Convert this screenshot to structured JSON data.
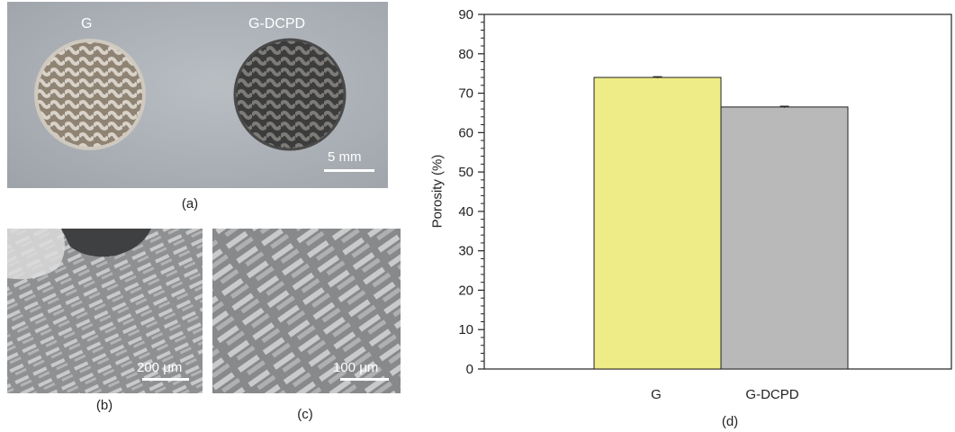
{
  "panel_a": {
    "label_left": "G",
    "label_right": "G-DCPD",
    "scale_label": "5 mm",
    "caption": "(a)"
  },
  "panel_b": {
    "scale_label": "200 μm",
    "caption": "(b)"
  },
  "panel_c": {
    "scale_label": "100 μm",
    "caption": "(c)"
  },
  "panel_d": {
    "caption": "(d)"
  },
  "colors": {
    "bar_g": "#eeec86",
    "bar_gdcpd": "#b9b9b9"
  },
  "chart_data": {
    "type": "bar",
    "categories": [
      "G",
      "G-DCPD"
    ],
    "values": [
      74,
      66.5
    ],
    "errors": [
      0.2,
      0.2
    ],
    "ylabel": "Porosity (%)",
    "xlabel": "",
    "ylim": [
      0,
      90
    ],
    "yticks": [
      0,
      10,
      20,
      30,
      40,
      50,
      60,
      70,
      80,
      90
    ],
    "grid": false
  }
}
